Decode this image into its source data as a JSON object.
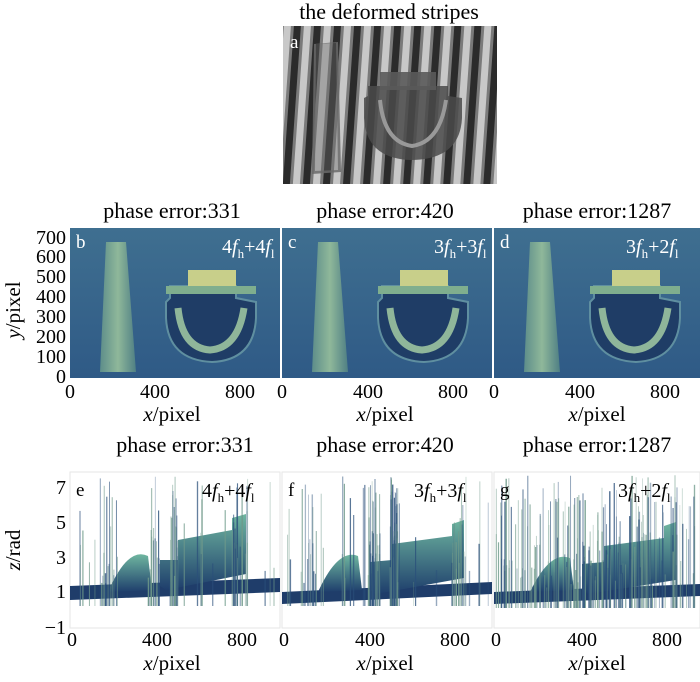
{
  "figure": {
    "panel_a": {
      "label": "a",
      "title": "the deformed stripes"
    },
    "row2": [
      {
        "label": "b",
        "title": "phase error:331",
        "formula": {
          "c1": "4",
          "c2": "4",
          "sub1": "h",
          "sub2": "l"
        }
      },
      {
        "label": "c",
        "title": "phase error:420",
        "formula": {
          "c1": "3",
          "c2": "3",
          "sub1": "h",
          "sub2": "l"
        }
      },
      {
        "label": "d",
        "title": "phase error:1287",
        "formula": {
          "c1": "3",
          "c2": "2",
          "sub1": "h",
          "sub2": "l"
        }
      }
    ],
    "row3": [
      {
        "label": "e",
        "title": "phase error:331",
        "formula": {
          "c1": "4",
          "c2": "4",
          "sub1": "h",
          "sub2": "l"
        }
      },
      {
        "label": "f",
        "title": "phase error:420",
        "formula": {
          "c1": "3",
          "c2": "3",
          "sub1": "h",
          "sub2": "l"
        }
      },
      {
        "label": "g",
        "title": "phase error:1287",
        "formula": {
          "c1": "3",
          "c2": "2",
          "sub1": "h",
          "sub2": "l"
        }
      }
    ],
    "x_axis": {
      "var": "x",
      "unit": "/pixel",
      "ticks": [
        "0",
        "400",
        "800"
      ]
    },
    "y_axis": {
      "var": "y",
      "unit": "/pixel",
      "ticks": [
        "0",
        "100",
        "200",
        "300",
        "400",
        "500",
        "600",
        "700"
      ]
    },
    "z_axis": {
      "var": "z",
      "unit": "/rad",
      "ticks": [
        "7",
        "5",
        "3",
        "1",
        "−1"
      ]
    },
    "colors": {
      "map_bg": "#3b6f94",
      "map_object": "#7fae8e",
      "surface_top": "#4f9f8e",
      "surface_low": "#1f3f6e"
    }
  }
}
